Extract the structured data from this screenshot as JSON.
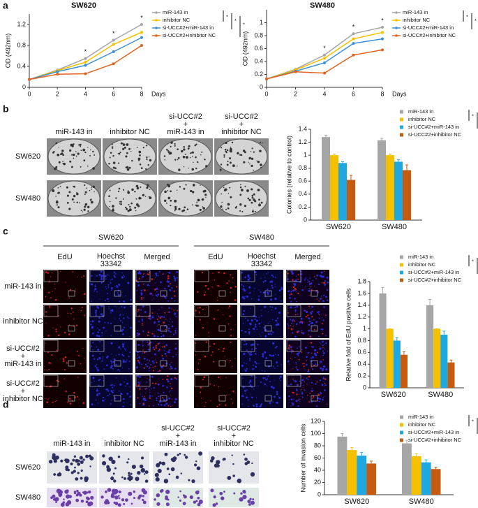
{
  "chart_data": [
    {
      "type": "line",
      "title": "SW620",
      "xlabel": "Days",
      "ylabel": "OD (492nm)",
      "x": [
        0,
        2,
        4,
        6,
        8
      ],
      "xlim": [
        0,
        8
      ],
      "xticks": [
        0,
        2,
        4,
        6,
        8
      ],
      "ylim": [
        0,
        1.4
      ],
      "yticks": [
        0,
        0.4,
        0.8,
        1.2
      ],
      "series": [
        {
          "name": "miR-143 in",
          "color": "#a6a6a6",
          "values": [
            0.15,
            0.33,
            0.55,
            0.9,
            1.2
          ]
        },
        {
          "name": "inhibitor NC",
          "color": "#f5c000",
          "values": [
            0.15,
            0.32,
            0.48,
            0.82,
            1.05
          ]
        },
        {
          "name": "si-UCC#2+miR-143 in",
          "color": "#3a8fd6",
          "values": [
            0.15,
            0.3,
            0.42,
            0.68,
            0.95
          ]
        },
        {
          "name": "si-UCC#2+inhibitor NC",
          "color": "#e2631e",
          "values": [
            0.15,
            0.25,
            0.26,
            0.45,
            0.8
          ]
        }
      ],
      "annotations": [
        "*",
        "*",
        "*"
      ],
      "legend_significance": [
        "*",
        "*",
        "*"
      ]
    },
    {
      "type": "line",
      "title": "SW480",
      "xlabel": "Days",
      "ylabel": "OD (492nm)",
      "x": [
        0,
        2,
        4,
        6,
        8
      ],
      "xlim": [
        0,
        8
      ],
      "xticks": [
        0,
        2,
        4,
        6,
        8
      ],
      "ylim": [
        0,
        1.2
      ],
      "yticks": [
        0,
        0.2,
        0.4,
        0.6,
        0.8,
        1
      ],
      "series": [
        {
          "name": "miR-143 in",
          "color": "#a6a6a6",
          "values": [
            0.13,
            0.28,
            0.5,
            0.83,
            0.93
          ]
        },
        {
          "name": "inhibitor NC",
          "color": "#f5c000",
          "values": [
            0.13,
            0.27,
            0.45,
            0.75,
            0.85
          ]
        },
        {
          "name": "si-UCC#2+miR-143 in",
          "color": "#3a8fd6",
          "values": [
            0.13,
            0.25,
            0.38,
            0.68,
            0.75
          ]
        },
        {
          "name": "si-UCC#2+inhibitor NC",
          "color": "#e2631e",
          "values": [
            0.13,
            0.24,
            0.22,
            0.5,
            0.58
          ]
        }
      ],
      "annotations": [
        "*",
        "*",
        "*"
      ],
      "legend_significance": [
        "*",
        "*",
        "*"
      ]
    },
    {
      "type": "bar",
      "ylabel": "Colonies (relative to control)",
      "categories": [
        "SW620",
        "SW480"
      ],
      "ylim": [
        0,
        1.4
      ],
      "yticks": [
        0,
        0.2,
        0.4,
        0.6,
        0.8,
        1,
        1.2,
        1.4
      ],
      "series": [
        {
          "name": "miR-143 in",
          "color": "#a6a6a6",
          "values": [
            1.28,
            1.23
          ],
          "errors": [
            0.03,
            0.03
          ]
        },
        {
          "name": "inhibitor NC",
          "color": "#f5c000",
          "values": [
            1.0,
            1.0
          ],
          "errors": [
            0.02,
            0.02
          ]
        },
        {
          "name": "si-UCC#2+miR-143 in",
          "color": "#1fa8e0",
          "values": [
            0.88,
            0.9
          ],
          "errors": [
            0.02,
            0.03
          ]
        },
        {
          "name": "si-UCC#2+inhibitor NC",
          "color": "#c55a11",
          "values": [
            0.62,
            0.77
          ],
          "errors": [
            0.07,
            0.08
          ]
        }
      ],
      "legend_significance": [
        "*",
        "*",
        "*"
      ]
    },
    {
      "type": "bar",
      "ylabel": "Relative fold of EdU positive cells",
      "categories": [
        "SW620",
        "SW480"
      ],
      "ylim": [
        0,
        1.8
      ],
      "yticks": [
        0,
        0.2,
        0.4,
        0.6,
        0.8,
        1,
        1.2,
        1.4,
        1.6,
        1.8
      ],
      "series": [
        {
          "name": "miR-143 in",
          "color": "#a6a6a6",
          "values": [
            1.6,
            1.4
          ],
          "errors": [
            0.1,
            0.1
          ]
        },
        {
          "name": "inhibitor NC",
          "color": "#f5c000",
          "values": [
            1.0,
            1.0
          ],
          "errors": [
            0.0,
            0.0
          ]
        },
        {
          "name": "si-UCC#2+miR-143 in",
          "color": "#1fa8e0",
          "values": [
            0.8,
            0.9
          ],
          "errors": [
            0.05,
            0.06
          ]
        },
        {
          "name": "si-UCC#2+inhibitor NC",
          "color": "#c55a11",
          "values": [
            0.56,
            0.43
          ],
          "errors": [
            0.05,
            0.04
          ]
        }
      ],
      "legend_significance": [
        "*",
        "*",
        "*"
      ]
    },
    {
      "type": "bar",
      "ylabel": "Number of invasion cells",
      "categories": [
        "SW620",
        "SW480"
      ],
      "ylim": [
        0,
        120
      ],
      "yticks": [
        0,
        20,
        40,
        60,
        80,
        100,
        120
      ],
      "series": [
        {
          "name": "miR-143 in",
          "color": "#a6a6a6",
          "values": [
            95,
            84
          ],
          "errors": [
            5,
            5
          ]
        },
        {
          "name": "inhibitor NC",
          "color": "#f5c000",
          "values": [
            73,
            63
          ],
          "errors": [
            4,
            4
          ]
        },
        {
          "name": "si-UCC#2+miR-143 in",
          "color": "#1fa8e0",
          "values": [
            64,
            53
          ],
          "errors": [
            5,
            4
          ]
        },
        {
          "name": "si-UCC#2+inhibitor NC",
          "color": "#c55a11",
          "values": [
            51,
            42
          ],
          "errors": [
            4,
            3
          ]
        }
      ],
      "legend_significance": [
        "*",
        "*",
        "*"
      ]
    }
  ],
  "panel_labels": [
    "a",
    "b",
    "c",
    "d"
  ],
  "colony_panel": {
    "columns": [
      [
        "miR-143 in"
      ],
      [
        "inhibitor NC"
      ],
      [
        "si-UCC#2",
        "+",
        "miR-143 in"
      ],
      [
        "si-UCC#2",
        "+",
        "inhibitor NC"
      ]
    ],
    "rows": [
      "SW620",
      "SW480"
    ]
  },
  "edu_panel": {
    "groups": [
      "SW620",
      "SW480"
    ],
    "columns": [
      [
        "EdU"
      ],
      [
        "Hoechst",
        "33342"
      ],
      [
        "Merged"
      ]
    ],
    "rows": [
      [
        "miR-143 in"
      ],
      [
        "inhibitor NC"
      ],
      [
        "si-UCC#2",
        "+",
        "miR-143 in"
      ],
      [
        "si-UCC#2",
        "+",
        "inhibitor NC"
      ]
    ]
  },
  "invasion_panel": {
    "columns": [
      [
        "miR-143 in"
      ],
      [
        "inhibitor NC"
      ],
      [
        "si-UCC#2",
        "+",
        "miR-143 in"
      ],
      [
        "si-UCC#2",
        "+",
        "inhibitor NC"
      ]
    ],
    "rows": [
      "SW620",
      "SW480"
    ]
  }
}
